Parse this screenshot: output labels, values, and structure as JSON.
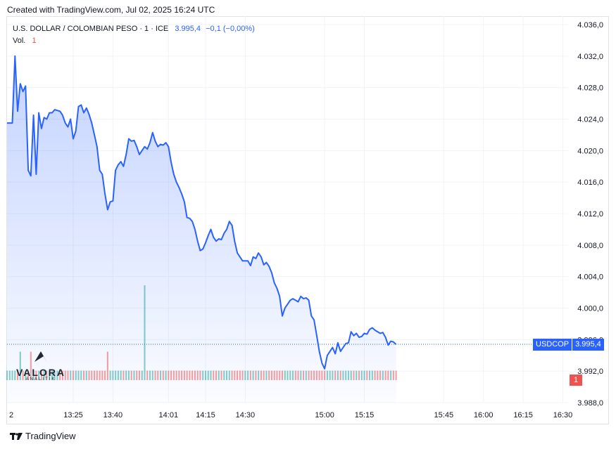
{
  "header": {
    "created_text": "Created with TradingView.com, Jul 02, 2025 16:24 UTC"
  },
  "legend": {
    "symbol_text": "U.S. DOLLAR / COLOMBIAN PESO · 1 · ICE",
    "last_value": "3.995,4",
    "change": "−0,1 (−0,00%)",
    "volume_label": "Vol.",
    "volume_value": "1"
  },
  "price_tag": {
    "ticker": "USDCOP",
    "value": "3.995,4"
  },
  "volume_tag": {
    "value": "1"
  },
  "logo": {
    "word": "VALORA",
    "sub": "ANALITIK"
  },
  "footer": {
    "brand": "TradingView"
  },
  "colors": {
    "line": "#2962ff",
    "area": "#2962ff",
    "vol_up": "#26a69a",
    "vol_down": "#ef5350"
  },
  "chart_data": {
    "type": "area",
    "ylim": [
      3988.0,
      4036.0
    ],
    "y_ticks": [
      {
        "value": 4036.0,
        "label": "4.036,0"
      },
      {
        "value": 4032.0,
        "label": "4.032,0"
      },
      {
        "value": 4028.0,
        "label": "4.028,0"
      },
      {
        "value": 4024.0,
        "label": "4.024,0"
      },
      {
        "value": 4020.0,
        "label": "4.020,0"
      },
      {
        "value": 4016.0,
        "label": "4.016,0"
      },
      {
        "value": 4012.0,
        "label": "4.012,0"
      },
      {
        "value": 4008.0,
        "label": "4.008,0"
      },
      {
        "value": 4004.0,
        "label": "4.004,0"
      },
      {
        "value": 4000.0,
        "label": "4.000,0"
      },
      {
        "value": 3996.0,
        "label": "3.996,0"
      },
      {
        "value": 3992.0,
        "label": "3.992,0"
      },
      {
        "value": 3988.0,
        "label": "3.988,0"
      }
    ],
    "x_ticks": [
      {
        "t": 780,
        "label": "2"
      },
      {
        "t": 805,
        "label": "13:25"
      },
      {
        "t": 820,
        "label": "13:40"
      },
      {
        "t": 841,
        "label": "14:01"
      },
      {
        "t": 855,
        "label": "14:15"
      },
      {
        "t": 870,
        "label": "14:30"
      },
      {
        "t": 900,
        "label": "15:00"
      },
      {
        "t": 915,
        "label": "15:15"
      },
      {
        "t": 945,
        "label": "15:45"
      },
      {
        "t": 960,
        "label": "16:00"
      },
      {
        "t": 975,
        "label": "16:15"
      },
      {
        "t": 990,
        "label": "16:30"
      }
    ],
    "xlim": [
      780,
      992
    ],
    "series": [
      {
        "values": [
          [
            780,
            4023.5
          ],
          [
            782,
            4023.5
          ],
          [
            783,
            4032.0
          ],
          [
            784,
            4025.0
          ],
          [
            785,
            4028.5
          ],
          [
            786,
            4027.5
          ],
          [
            787,
            4028.2
          ],
          [
            788,
            4017.5
          ],
          [
            789,
            4016.8
          ],
          [
            790,
            4024.5
          ],
          [
            791,
            4017.0
          ],
          [
            792,
            4024.8
          ],
          [
            793,
            4022.8
          ],
          [
            794,
            4024.2
          ],
          [
            795,
            4024.0
          ],
          [
            796,
            4024.8
          ],
          [
            797,
            4024.8
          ],
          [
            798,
            4025.2
          ],
          [
            800,
            4025.0
          ],
          [
            801,
            4024.5
          ],
          [
            802,
            4023.5
          ],
          [
            803,
            4023.0
          ],
          [
            804,
            4024.0
          ],
          [
            805,
            4021.5
          ],
          [
            806,
            4022.5
          ],
          [
            807,
            4025.6
          ],
          [
            808,
            4025.8
          ],
          [
            809,
            4024.8
          ],
          [
            810,
            4025.4
          ],
          [
            811,
            4024.6
          ],
          [
            812,
            4023.5
          ],
          [
            813,
            4022.0
          ],
          [
            814,
            4020.5
          ],
          [
            815,
            4017.5
          ],
          [
            816,
            4017.0
          ],
          [
            817,
            4014.5
          ],
          [
            818,
            4012.5
          ],
          [
            819,
            4013.5
          ],
          [
            820,
            4013.6
          ],
          [
            821,
            4017.5
          ],
          [
            822,
            4018.2
          ],
          [
            823,
            4018.6
          ],
          [
            824,
            4018.0
          ],
          [
            825,
            4019.5
          ],
          [
            826,
            4021.5
          ],
          [
            827,
            4021.2
          ],
          [
            828,
            4021.3
          ],
          [
            829,
            4020.5
          ],
          [
            830,
            4019.5
          ],
          [
            831,
            4020.0
          ],
          [
            832,
            4020.5
          ],
          [
            833,
            4020.2
          ],
          [
            834,
            4021.0
          ],
          [
            835,
            4022.3
          ],
          [
            836,
            4021.2
          ],
          [
            837,
            4020.5
          ],
          [
            838,
            4020.8
          ],
          [
            839,
            4020.7
          ],
          [
            840,
            4021.0
          ],
          [
            841,
            4020.5
          ],
          [
            842,
            4018.5
          ],
          [
            843,
            4017.0
          ],
          [
            844,
            4016.0
          ],
          [
            845,
            4015.3
          ],
          [
            846,
            4014.5
          ],
          [
            847,
            4013.5
          ],
          [
            848,
            4011.5
          ],
          [
            849,
            4011.4
          ],
          [
            850,
            4011.0
          ],
          [
            851,
            4010.0
          ],
          [
            852,
            4008.5
          ],
          [
            853,
            4007.3
          ],
          [
            854,
            4007.5
          ],
          [
            855,
            4008.3
          ],
          [
            856,
            4009.2
          ],
          [
            857,
            4010.0
          ],
          [
            858,
            4009.0
          ],
          [
            859,
            4008.5
          ],
          [
            860,
            4008.8
          ],
          [
            861,
            4008.7
          ],
          [
            862,
            4009.5
          ],
          [
            863,
            4010.0
          ],
          [
            864,
            4011.0
          ],
          [
            865,
            4010.5
          ],
          [
            866,
            4008.5
          ],
          [
            867,
            4007.0
          ],
          [
            868,
            4006.5
          ],
          [
            869,
            4006.0
          ],
          [
            870,
            4006.0
          ],
          [
            871,
            4006.0
          ],
          [
            872,
            4005.4
          ],
          [
            873,
            4006.5
          ],
          [
            874,
            4006.3
          ],
          [
            875,
            4007.0
          ],
          [
            876,
            4006.5
          ],
          [
            877,
            4005.5
          ],
          [
            878,
            4005.8
          ],
          [
            879,
            4005.3
          ],
          [
            880,
            4004.5
          ],
          [
            881,
            4003.2
          ],
          [
            882,
            4002.5
          ],
          [
            883,
            4001.5
          ],
          [
            884,
            3999.0
          ],
          [
            885,
            4000.0
          ],
          [
            886,
            4000.5
          ],
          [
            887,
            4001.0
          ],
          [
            888,
            4001.2
          ],
          [
            889,
            4001.0
          ],
          [
            890,
            4000.8
          ],
          [
            891,
            4001.5
          ],
          [
            892,
            4001.2
          ],
          [
            893,
            4001.3
          ],
          [
            894,
            4001.0
          ],
          [
            895,
            3999.0
          ],
          [
            896,
            3998.5
          ],
          [
            897,
            3996.5
          ],
          [
            898,
            3994.5
          ],
          [
            899,
            3993.0
          ],
          [
            900,
            3992.3
          ],
          [
            901,
            3994.0
          ],
          [
            902,
            3994.5
          ],
          [
            903,
            3995.0
          ],
          [
            904,
            3994.2
          ],
          [
            905,
            3995.6
          ],
          [
            906,
            3994.5
          ],
          [
            907,
            3995.0
          ],
          [
            908,
            3995.5
          ],
          [
            909,
            3995.6
          ],
          [
            910,
            3997.0
          ],
          [
            911,
            3996.5
          ],
          [
            912,
            3996.8
          ],
          [
            913,
            3996.3
          ],
          [
            914,
            3996.4
          ],
          [
            915,
            3996.8
          ],
          [
            916,
            3996.7
          ],
          [
            917,
            3997.3
          ],
          [
            918,
            3997.5
          ],
          [
            919,
            3997.2
          ],
          [
            920,
            3997.0
          ],
          [
            921,
            3996.8
          ],
          [
            922,
            3996.9
          ],
          [
            923,
            3996.3
          ],
          [
            924,
            3995.3
          ],
          [
            925,
            3995.8
          ],
          [
            926,
            3995.7
          ],
          [
            927,
            3995.4
          ]
        ]
      }
    ],
    "volume": {
      "ylim": [
        0,
        10
      ],
      "bars_from": 780,
      "bars_to": 927,
      "spikes": [
        {
          "t": 785,
          "value": 3
        },
        {
          "t": 789,
          "value": 3
        },
        {
          "t": 818,
          "value": 3
        },
        {
          "t": 832,
          "value": 10
        }
      ],
      "base_value": 1
    }
  }
}
